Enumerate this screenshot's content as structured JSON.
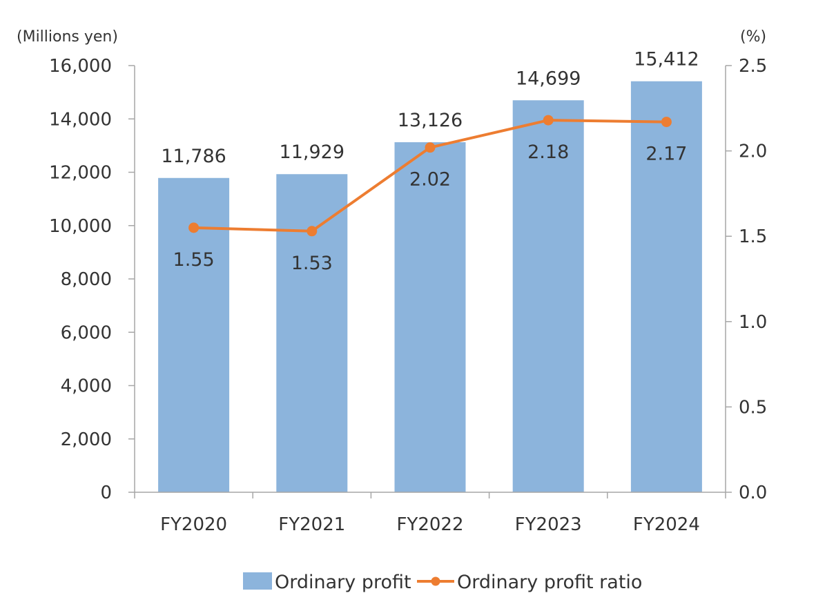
{
  "chart_data": {
    "type": "bar",
    "title": "",
    "categories": [
      "FY2020",
      "FY2021",
      "FY2022",
      "FY2023",
      "FY2024"
    ],
    "series": [
      {
        "name": "Ordinary profit",
        "type": "bar",
        "axis": "left",
        "color": "#8cb4dc",
        "values": [
          11786,
          11929,
          13126,
          14699,
          15412
        ],
        "labels": [
          "11,786",
          "11,929",
          "13,126",
          "14,699",
          "15,412"
        ]
      },
      {
        "name": "Ordinary profit ratio",
        "type": "line",
        "axis": "right",
        "color": "#ed7d31",
        "values": [
          1.55,
          1.53,
          2.02,
          2.18,
          2.17
        ],
        "labels": [
          "1.55",
          "1.53",
          "2.02",
          "2.18",
          "2.17"
        ]
      }
    ],
    "y_left": {
      "label": "(Millions yen)",
      "ylim": [
        0,
        16000
      ],
      "ticks": [
        "0",
        "2,000",
        "4,000",
        "6,000",
        "8,000",
        "10,000",
        "12,000",
        "14,000",
        "16,000"
      ],
      "tick_values": [
        0,
        2000,
        4000,
        6000,
        8000,
        10000,
        12000,
        14000,
        16000
      ]
    },
    "y_right": {
      "label": "(%)",
      "ylim": [
        0,
        2.5
      ],
      "ticks": [
        "0.0",
        "0.5",
        "1.0",
        "1.5",
        "2.0",
        "2.5"
      ],
      "tick_values": [
        0,
        0.5,
        1.0,
        1.5,
        2.0,
        2.5
      ]
    },
    "grid": false,
    "legend": "bottom-center",
    "axis_color": "#a6a6a6"
  }
}
